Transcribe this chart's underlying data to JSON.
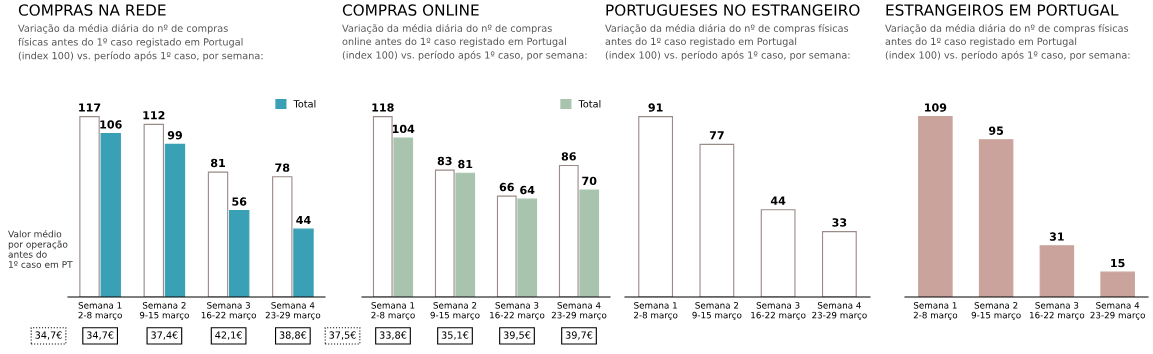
{
  "chart_data": [
    {
      "type": "bar",
      "title": "COMPRAS NA REDE",
      "subtitle": "Variação da média diária do nº de compras\nfísicas antes do 1º caso registado em Portugal\n(index 100) vs. período após 1º caso, por semana:",
      "categories": [
        "Semana 1\n2-8 março",
        "Semana 2\n9-15 março",
        "Semana 3\n16-22 março",
        "Semana 4\n23-29 março"
      ],
      "series": [
        {
          "color": "#ffffff",
          "values": [
            117,
            112,
            81,
            78
          ]
        },
        {
          "name": "Total",
          "color": "#39a0b5",
          "values": [
            106,
            99,
            56,
            44
          ]
        }
      ],
      "data_labels": true,
      "legend": "top right",
      "annotations": [
        "Valor médio\npor operação\nantes do\n1º caso em PT",
        "34,7€",
        "34,7€",
        "37,4€",
        "42,1€",
        "38,8€"
      ]
    },
    {
      "type": "bar",
      "title": "COMPRAS ONLINE",
      "subtitle": "Variação da média diária do nº de compras\nonline antes do 1º caso registado em Portugal\n(index 100) vs. período após 1º caso, por semana:",
      "categories": [
        "Semana 1\n2-8 março",
        "Semana 2\n9-15 março",
        "Semana 3\n16-22 março",
        "Semana 4\n23-29 março"
      ],
      "series": [
        {
          "color": "#ffffff",
          "values": [
            118,
            83,
            66,
            86
          ]
        },
        {
          "name": "Total",
          "color": "#a8c4ae",
          "values": [
            104,
            81,
            64,
            70
          ]
        }
      ],
      "data_labels": true,
      "legend": "top right",
      "annotations": [
        "37,5€",
        "33,8€",
        "35,1€",
        "39,5€",
        "39,7€"
      ]
    },
    {
      "type": "bar",
      "title": "PORTUGUESES NO ESTRANGEIRO",
      "subtitle": "Variação da média diária do nº de compras físicas\nantes do 1º caso registado em Portugal\n(index 100) vs. período após 1º caso, por semana:",
      "categories": [
        "Semana 1\n2-8 março",
        "Semana 2\n9-15 março",
        "Semana 3\n16-22 março",
        "Semana 4\n23-29 março"
      ],
      "values": [
        91,
        77,
        44,
        33
      ],
      "color": "#ffffff",
      "data_labels": true
    },
    {
      "type": "bar",
      "title": "ESTRANGEIROS EM PORTUGAL",
      "subtitle": "Variação da média diária do nº de compras físicas\nantes do 1º caso registado em Portugal\n(index 100) vs. período após 1º caso, por semana:",
      "categories": [
        "Semana 1\n2-8 março",
        "Semana 2\n9-15 março",
        "Semana 3\n16-22 março",
        "Semana 4\n23-29 março"
      ],
      "values": [
        109,
        95,
        31,
        15
      ],
      "color": "#c9a39c",
      "data_labels": true
    }
  ]
}
